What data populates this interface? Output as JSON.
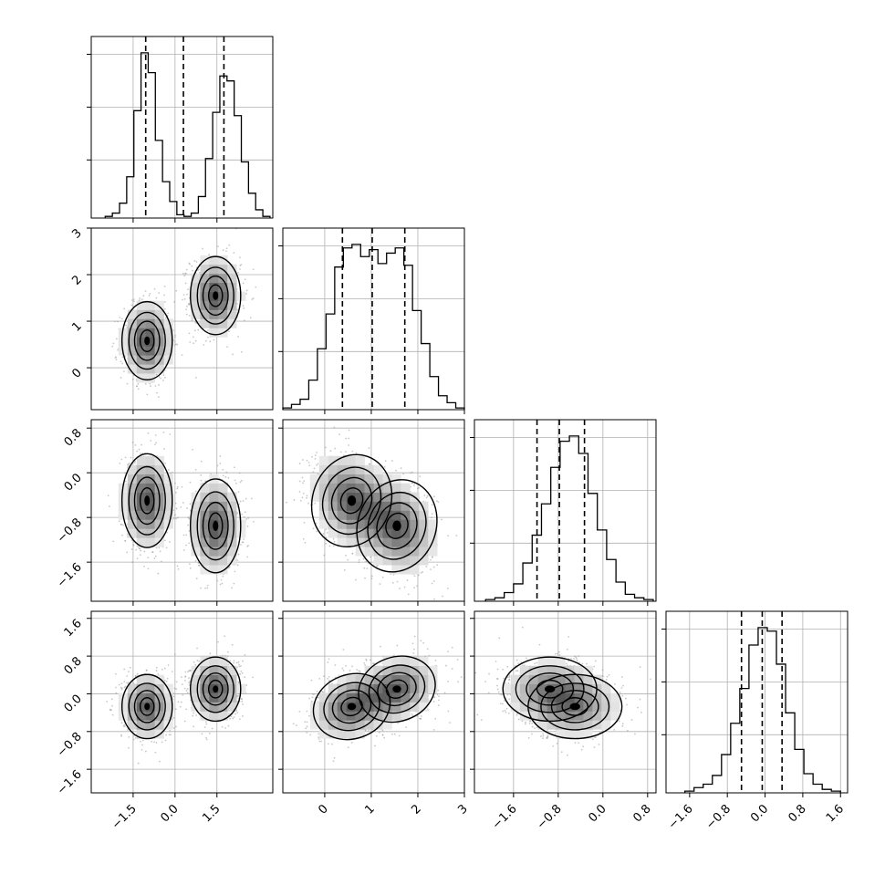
{
  "chart_data": {
    "type": "corner",
    "variables": [
      {
        "range": [
          -3.0,
          3.5
        ],
        "ticks": [
          -1.5,
          0.0,
          1.5
        ],
        "tick_labels": [
          "−1.5",
          "0.0",
          "1.5"
        ],
        "quantiles": [
          -1.05,
          0.3,
          1.75
        ],
        "hist_range": [
          -2.5,
          3.4
        ],
        "hist": [
          0.01,
          0.03,
          0.09,
          0.25,
          0.65,
          1.0,
          0.88,
          0.47,
          0.22,
          0.1,
          0.02,
          0.01,
          0.03,
          0.13,
          0.36,
          0.64,
          0.86,
          0.83,
          0.62,
          0.34,
          0.15,
          0.05,
          0.01
        ]
      },
      {
        "range": [
          -0.9,
          3.0
        ],
        "ticks": [
          0,
          1,
          2,
          3
        ],
        "tick_labels": [
          "0",
          "1",
          "2",
          "3"
        ],
        "quantiles": [
          0.38,
          1.02,
          1.72
        ],
        "hist_range": [
          -0.9,
          3.0
        ],
        "hist": [
          0.01,
          0.03,
          0.06,
          0.17,
          0.35,
          0.55,
          0.82,
          0.93,
          0.95,
          0.88,
          0.92,
          0.84,
          0.9,
          0.93,
          0.83,
          0.57,
          0.38,
          0.19,
          0.08,
          0.04,
          0.01
        ]
      },
      {
        "range": [
          -2.3,
          0.95
        ],
        "ticks": [
          -1.6,
          -0.8,
          0.0,
          0.8
        ],
        "tick_labels": [
          "−1.6",
          "−0.8",
          "0.0",
          "0.8"
        ],
        "quantiles": [
          -1.18,
          -0.78,
          -0.33
        ],
        "hist_range": [
          -2.1,
          0.9
        ],
        "hist": [
          0.01,
          0.02,
          0.05,
          0.1,
          0.22,
          0.38,
          0.56,
          0.77,
          0.92,
          0.95,
          0.85,
          0.62,
          0.41,
          0.24,
          0.11,
          0.04,
          0.02,
          0.01
        ]
      },
      {
        "range": [
          -2.1,
          1.75
        ],
        "ticks": [
          -1.6,
          -0.8,
          0.0,
          0.8,
          1.6
        ],
        "tick_labels": [
          "−1.6",
          "−0.8",
          "0.0",
          "0.8",
          "1.6"
        ],
        "quantiles": [
          -0.5,
          -0.06,
          0.36
        ],
        "hist_range": [
          -1.7,
          1.6
        ],
        "hist": [
          0.01,
          0.03,
          0.05,
          0.1,
          0.22,
          0.4,
          0.6,
          0.85,
          0.95,
          0.93,
          0.74,
          0.46,
          0.25,
          0.11,
          0.05,
          0.02,
          0.01
        ]
      }
    ],
    "mixture_components": [
      {
        "weight": 0.5,
        "mean": [
          -1.0,
          0.58,
          -0.5,
          -0.27
        ],
        "sd": [
          0.45,
          0.42,
          0.42,
          0.34
        ]
      },
      {
        "weight": 0.5,
        "mean": [
          1.45,
          1.55,
          -0.95,
          0.1
        ],
        "sd": [
          0.45,
          0.42,
          0.42,
          0.34
        ]
      }
    ],
    "contour_levels": [
      "1 sigma",
      "1.5 sigma",
      "2 sigma"
    ],
    "scatter_points_per_panel": 1500,
    "grid": true,
    "quantile_style": "dashed",
    "colors": {
      "hist": "#000000",
      "contour": "#000000",
      "points": "#9a9a9a",
      "grid": "#b0b0b0"
    }
  }
}
